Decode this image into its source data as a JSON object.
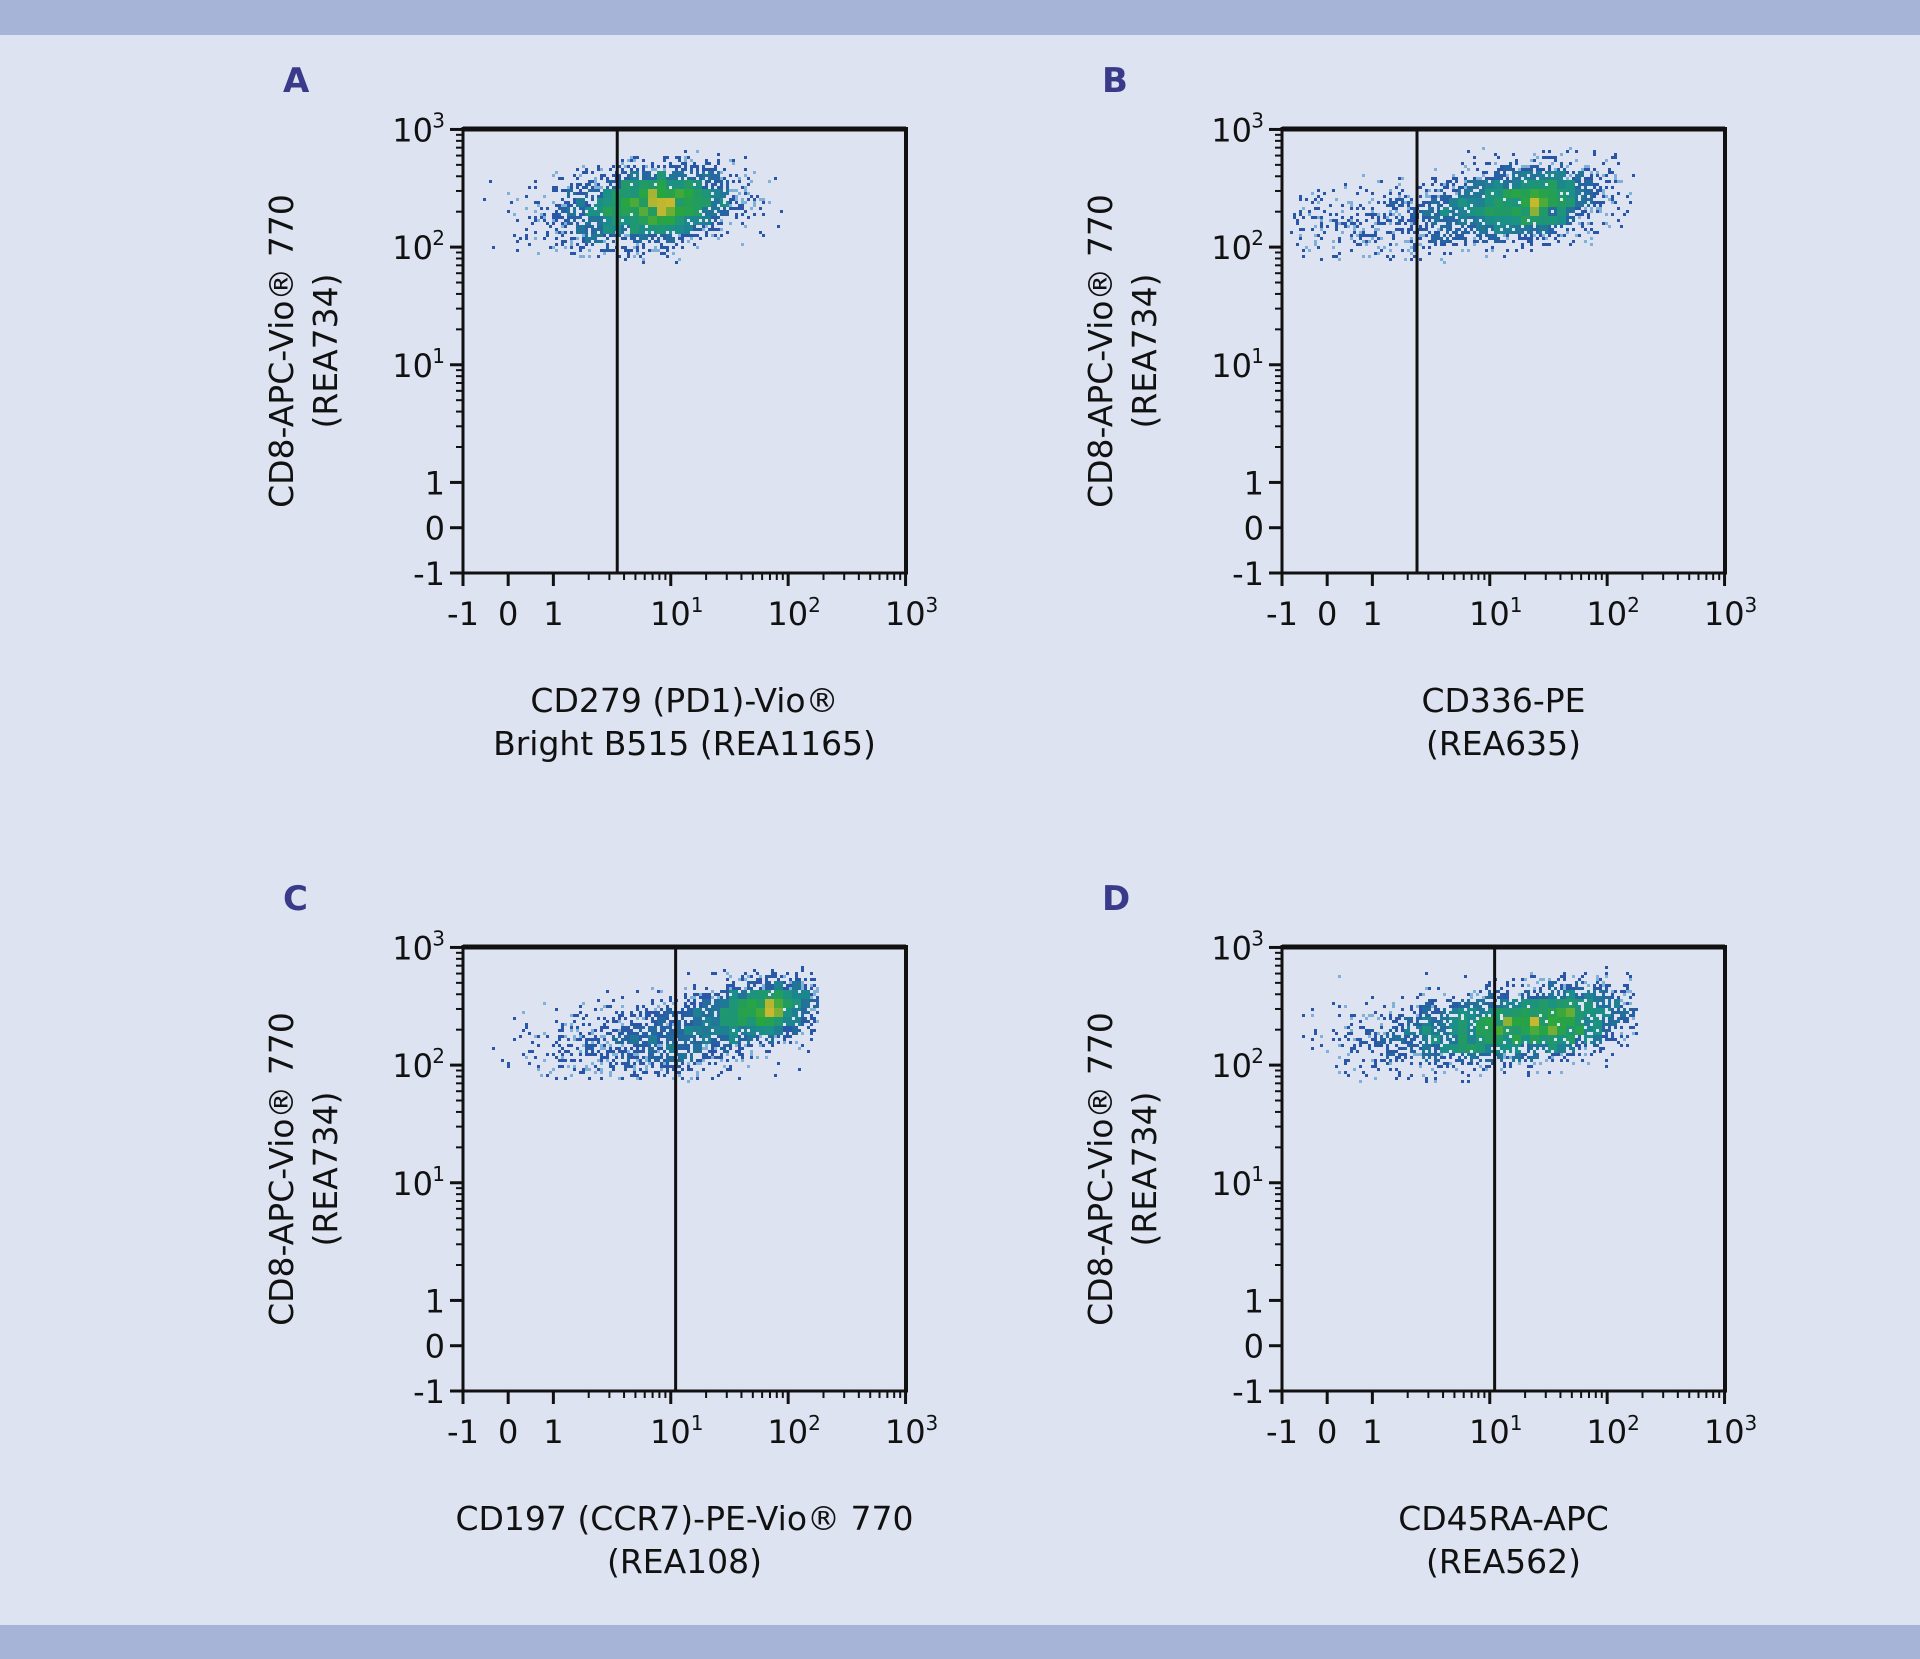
{
  "colors": {
    "background": "#dde3f1",
    "band": "#a6b4d8",
    "letter": "#3a3a8a",
    "density_low": "#2a56a8",
    "density_mid": "#1a8f8a",
    "density_high": "#2aa63c",
    "density_peak": "#c8b830"
  },
  "chart_data": [
    {
      "type": "scatter",
      "panel_label": "A",
      "ylabel_lines": [
        "CD8-APC-Vio® 770",
        "(REA734)"
      ],
      "xlabel_lines": [
        "CD279 (PD1)-Vio®",
        "Bright B515 (REA1165)"
      ],
      "x_scale": "biexponential",
      "y_scale": "biexponential",
      "xlim": [
        -1,
        1000
      ],
      "ylim": [
        -1,
        1000
      ],
      "tick_labels": [
        "-1",
        "0",
        "1",
        "10¹",
        "10²",
        "10³"
      ],
      "gate_x": 3.5,
      "populations": [
        {
          "center_x": 7,
          "center_y": 230,
          "spread_x_decades": 0.33,
          "spread_y_decades": 0.16,
          "share": 1.0
        }
      ]
    },
    {
      "type": "scatter",
      "panel_label": "B",
      "ylabel_lines": [
        "CD8-APC-Vio® 770",
        "(REA734)"
      ],
      "xlabel_lines": [
        "CD336-PE",
        "(REA635)"
      ],
      "x_scale": "biexponential",
      "y_scale": "biexponential",
      "xlim": [
        -1,
        1000
      ],
      "ylim": [
        -1,
        1000
      ],
      "tick_labels": [
        "-1",
        "0",
        "1",
        "10¹",
        "10²",
        "10³"
      ],
      "gate_x": 2.4,
      "populations": [
        {
          "center_x": 20,
          "center_y": 250,
          "spread_x_decades": 0.3,
          "spread_y_decades": 0.15,
          "share": 0.8
        },
        {
          "center_x": 2,
          "center_y": 170,
          "spread_x_decades": 0.5,
          "spread_y_decades": 0.16,
          "share": 0.2
        }
      ]
    },
    {
      "type": "scatter",
      "panel_label": "C",
      "ylabel_lines": [
        "CD8-APC-Vio® 770",
        "(REA734)"
      ],
      "xlabel_lines": [
        "CD197 (CCR7)-PE-Vio® 770",
        "(REA108)"
      ],
      "x_scale": "biexponential",
      "y_scale": "biexponential",
      "xlim": [
        -1,
        1000
      ],
      "ylim": [
        -1,
        1000
      ],
      "tick_labels": [
        "-1",
        "0",
        "1",
        "10¹",
        "10²",
        "10³"
      ],
      "gate_x": 11,
      "populations": [
        {
          "center_x": 60,
          "center_y": 300,
          "spread_x_decades": 0.22,
          "spread_y_decades": 0.12,
          "share": 0.6
        },
        {
          "center_x": 9,
          "center_y": 170,
          "spread_x_decades": 0.4,
          "spread_y_decades": 0.17,
          "share": 0.4
        }
      ]
    },
    {
      "type": "scatter",
      "panel_label": "D",
      "ylabel_lines": [
        "CD8-APC-Vio® 770",
        "(REA734)"
      ],
      "xlabel_lines": [
        "CD45RA-APC",
        "(REA562)"
      ],
      "x_scale": "biexponential",
      "y_scale": "biexponential",
      "xlim": [
        -1,
        1000
      ],
      "ylim": [
        -1,
        1000
      ],
      "tick_labels": [
        "-1",
        "0",
        "1",
        "10¹",
        "10²",
        "10³"
      ],
      "gate_x": 11,
      "populations": [
        {
          "center_x": 30,
          "center_y": 240,
          "spread_x_decades": 0.35,
          "spread_y_decades": 0.15,
          "share": 0.65
        },
        {
          "center_x": 5,
          "center_y": 190,
          "spread_x_decades": 0.4,
          "spread_y_decades": 0.16,
          "share": 0.35
        }
      ]
    }
  ]
}
